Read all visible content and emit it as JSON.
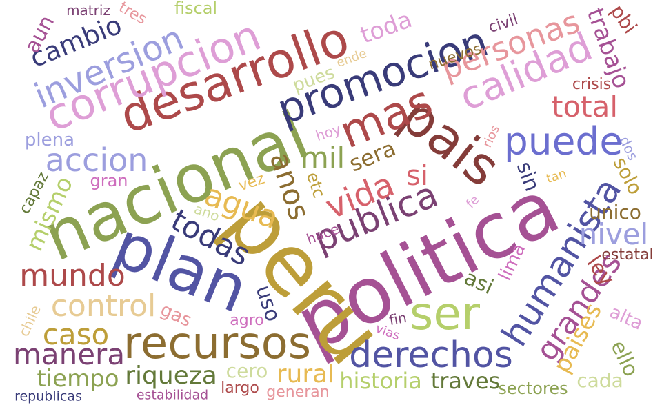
{
  "words": [
    {
      "text": "politica",
      "color": "#a55194"
    },
    {
      "text": "peru",
      "color": "#bd9e39"
    },
    {
      "text": "nacional",
      "color": "#8ca252"
    },
    {
      "text": "plan",
      "color": "#5254a3"
    },
    {
      "text": "pais",
      "color": "#843c39"
    },
    {
      "text": "desarrollo",
      "color": "#ad494a"
    },
    {
      "text": "corrupcion",
      "color": "#de9ed6"
    },
    {
      "text": "promocion",
      "color": "#393b79"
    },
    {
      "text": "mas",
      "color": "#ad494a"
    },
    {
      "text": "calidad",
      "color": "#de9ed6"
    },
    {
      "text": "publica",
      "color": "#7b4173"
    },
    {
      "text": "recursos",
      "color": "#8c6d31"
    },
    {
      "text": "humanista",
      "color": "#5254a3"
    },
    {
      "text": "ser",
      "color": "#b5cf6b"
    },
    {
      "text": "derechos",
      "color": "#5254a3"
    },
    {
      "text": "inversion",
      "color": "#9c9ede"
    },
    {
      "text": "puede",
      "color": "#6b6ecf"
    },
    {
      "text": "grandes",
      "color": "#a55194"
    },
    {
      "text": "personas",
      "color": "#e7969c"
    },
    {
      "text": "todas",
      "color": "#393b79"
    },
    {
      "text": "agua",
      "color": "#e7ba52"
    },
    {
      "text": "anos",
      "color": "#8c6d31"
    },
    {
      "text": "vida",
      "color": "#d6616b"
    },
    {
      "text": "accion",
      "color": "#9c9ede"
    },
    {
      "text": "control",
      "color": "#e7cb94"
    },
    {
      "text": "mundo",
      "color": "#ad494a"
    },
    {
      "text": "total",
      "color": "#d6616b"
    },
    {
      "text": "manera",
      "color": "#7b4173"
    },
    {
      "text": "cambio",
      "color": "#393b79"
    },
    {
      "text": "mil",
      "color": "#8ca252"
    },
    {
      "text": "nivel",
      "color": "#9c9ede"
    },
    {
      "text": "paises",
      "color": "#e7ba52"
    },
    {
      "text": "caso",
      "color": "#bd9e39"
    },
    {
      "text": "riqueza",
      "color": "#637939"
    },
    {
      "text": "tiempo",
      "color": "#8ca252"
    },
    {
      "text": "mismo",
      "color": "#b5cf6b"
    },
    {
      "text": "rural",
      "color": "#e7ba52"
    },
    {
      "text": "historia",
      "color": "#b5cf6b"
    },
    {
      "text": "traves",
      "color": "#637939"
    },
    {
      "text": "trabajo",
      "color": "#a55194"
    },
    {
      "text": "toda",
      "color": "#de9ed6"
    },
    {
      "text": "sera",
      "color": "#8c6d31"
    },
    {
      "text": "si",
      "color": "#d6616b"
    },
    {
      "text": "ello",
      "color": "#8ca252"
    },
    {
      "text": "uso",
      "color": "#393b79"
    },
    {
      "text": "sin",
      "color": "#393b79"
    },
    {
      "text": "solo",
      "color": "#bd9e39"
    },
    {
      "text": "cada",
      "color": "#cedb9c"
    },
    {
      "text": "ley",
      "color": "#ad494a"
    },
    {
      "text": "unico",
      "color": "#8c6d31"
    },
    {
      "text": "asi",
      "color": "#637939"
    },
    {
      "text": "cero",
      "color": "#cedb9c"
    },
    {
      "text": "aun",
      "color": "#a55194"
    },
    {
      "text": "pbi",
      "color": "#ad494a"
    },
    {
      "text": "sectores",
      "color": "#8ca252"
    },
    {
      "text": "lima",
      "color": "#ce6dbd"
    },
    {
      "text": "gas",
      "color": "#e7969c"
    },
    {
      "text": "alta",
      "color": "#de9ed6"
    },
    {
      "text": "etc",
      "color": "#bd9e39"
    },
    {
      "text": "plena",
      "color": "#9c9ede"
    },
    {
      "text": "pues",
      "color": "#cedb9c"
    },
    {
      "text": "gran",
      "color": "#ce6dbd"
    },
    {
      "text": "estatal",
      "color": "#843c39"
    },
    {
      "text": "nuevos",
      "color": "#8c6d31"
    },
    {
      "text": "civil",
      "color": "#7b4173"
    },
    {
      "text": "crisis",
      "color": "#ad494a"
    },
    {
      "text": "chile",
      "color": "#e7cb94"
    },
    {
      "text": "capaz",
      "color": "#637939"
    },
    {
      "text": "vez",
      "color": "#e7ba52"
    },
    {
      "text": "agro",
      "color": "#ce6dbd"
    },
    {
      "text": "largo",
      "color": "#ad494a"
    },
    {
      "text": "generan",
      "color": "#e7969c"
    },
    {
      "text": "estabilidad",
      "color": "#a55194"
    },
    {
      "text": "republicas",
      "color": "#393b79"
    },
    {
      "text": "matriz",
      "color": "#7b4173"
    },
    {
      "text": "fiscal",
      "color": "#b5cf6b"
    },
    {
      "text": "tres",
      "color": "#e7969c"
    },
    {
      "text": "dos",
      "color": "#9c9ede"
    },
    {
      "text": "hace",
      "color": "#a55194"
    },
    {
      "text": "fin",
      "color": "#7b4173"
    },
    {
      "text": "vias",
      "color": "#ce6dbd"
    },
    {
      "text": "tan",
      "color": "#e7ba52"
    },
    {
      "text": "rios",
      "color": "#e7969c"
    },
    {
      "text": "hoy",
      "color": "#de9ed6"
    },
    {
      "text": "ano",
      "color": "#cedb9c"
    },
    {
      "text": "ende",
      "color": "#e7cb94"
    },
    {
      "text": "fe",
      "color": "#de9ed6"
    }
  ]
}
